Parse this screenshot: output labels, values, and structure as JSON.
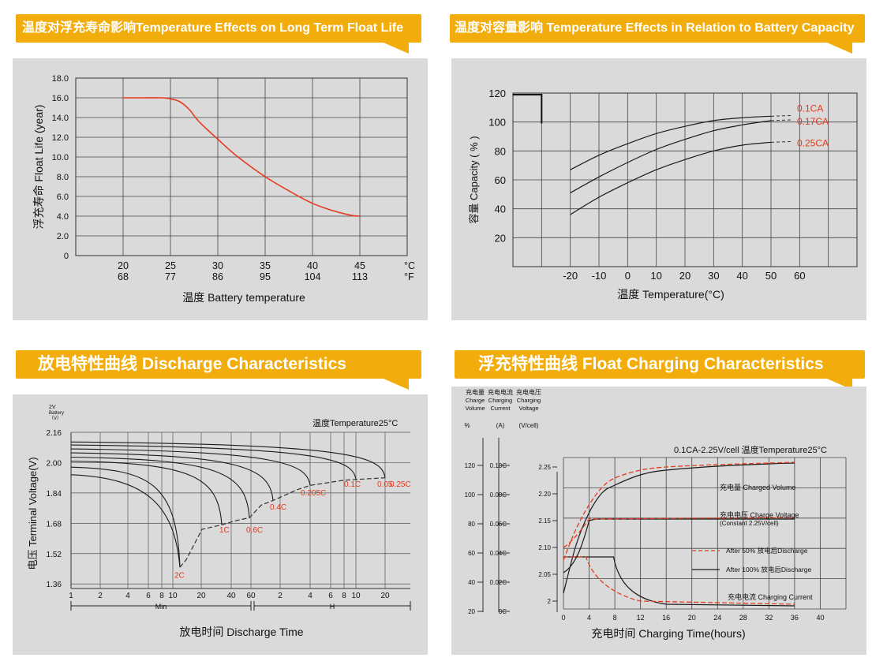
{
  "colors": {
    "banner": "#f2ad0c",
    "panel_bg": "#dadada",
    "accent_red": "#e53a1e",
    "line": "#222222"
  },
  "chart_data": [
    {
      "type": "line",
      "title": "温度对浮充寿命影响Temperature Effects on Long Term Float Life",
      "xlabel": "温度  Battery temperature",
      "ylabel": "浮充寿命  Float Life (year)",
      "x_ticks_c": [
        "20",
        "25",
        "30",
        "35",
        "40",
        "45"
      ],
      "x_ticks_f": [
        "68",
        "77",
        "86",
        "95",
        "104",
        "113"
      ],
      "x_unit_c": "°C",
      "x_unit_f": "°F",
      "y_ticks": [
        "0",
        "2.0",
        "4.0",
        "6.0",
        "8.0",
        "10.0",
        "12.0",
        "14.0",
        "16.0",
        "18.0"
      ],
      "xlim": [
        15,
        50
      ],
      "ylim": [
        0,
        18
      ],
      "grid": true,
      "series": [
        {
          "color": "#e53a1e",
          "x": [
            20,
            22,
            24,
            25,
            26,
            27,
            28,
            30,
            32,
            35,
            38,
            40,
            42,
            44,
            45
          ],
          "y": [
            16.0,
            16.0,
            16.0,
            15.9,
            15.6,
            14.8,
            13.6,
            11.8,
            10.1,
            8.0,
            6.3,
            5.3,
            4.6,
            4.1,
            4.0
          ]
        }
      ]
    },
    {
      "type": "line",
      "title": "温度对容量影响 Temperature Effects in Relation to Battery Capacity",
      "xlabel": "温度  Temperature(°C)",
      "ylabel": "容量 Capacity ( % )",
      "x_ticks": [
        "-20",
        "-10",
        "0",
        "10",
        "20",
        "30",
        "40",
        "50",
        "60"
      ],
      "y_ticks": [
        "20",
        "40",
        "60",
        "80",
        "100",
        "120"
      ],
      "grid": true,
      "series": [
        {
          "name": "0.1CA",
          "x": [
            -20,
            -10,
            0,
            10,
            20,
            30,
            40,
            50
          ],
          "y": [
            67,
            77,
            85,
            92,
            97,
            101,
            103,
            104
          ]
        },
        {
          "name": "0.17CA",
          "x": [
            -20,
            -10,
            0,
            10,
            20,
            30,
            40,
            50
          ],
          "y": [
            51,
            62,
            72,
            81,
            88,
            94,
            98,
            101
          ]
        },
        {
          "name": "0.25CA",
          "x": [
            -20,
            -10,
            0,
            10,
            20,
            30,
            40,
            50
          ],
          "y": [
            36,
            48,
            58,
            67,
            74,
            80,
            84,
            86
          ]
        }
      ]
    },
    {
      "type": "line",
      "title": "放电特性曲线 Discharge Characteristics",
      "xlabel": "放电时间 Discharge Time",
      "ylabel": "电压 Terminal Voltage(V)",
      "y_top_note": [
        "2V",
        "Battery",
        "（V）"
      ],
      "note": "温度Temperature25°C",
      "x_ticks": [
        "1",
        "2",
        "4",
        "6",
        "8",
        "10",
        "20",
        "40",
        "60",
        "2",
        "4",
        "6",
        "8",
        "10",
        "20"
      ],
      "x_groups": [
        "Min",
        "H"
      ],
      "y_ticks": [
        "2.16",
        "2.00",
        "1.84",
        "1.68",
        "1.52",
        "1.36"
      ],
      "series_labels": [
        "2C",
        "1C",
        "0.6C",
        "0.4C",
        "0.205C",
        "0.1C",
        "0.05",
        "0.25C"
      ]
    },
    {
      "type": "line",
      "title": "浮充特性曲线 Float Charging Characteristics",
      "xlabel": "充电时间 Charging Time(hours)",
      "axis_headers": [
        {
          "lines": [
            "充电量",
            "Charge",
            "Volume"
          ],
          "unit": "%"
        },
        {
          "lines": [
            "充电电流",
            "Charging",
            "Current"
          ],
          "unit": "(A)"
        },
        {
          "lines": [
            "充电电压",
            "Charging",
            "Voltage"
          ],
          "unit": "(V/cell)"
        }
      ],
      "volume_ticks": [
        "120",
        "100",
        "80",
        "60",
        "40",
        "20"
      ],
      "current_ticks": [
        "0.10C",
        "0.08C",
        "0.06C",
        "0.04C",
        "0.02C",
        "0C"
      ],
      "voltage_ticks": [
        "2.25",
        "2.20",
        "2.15",
        "2.10",
        "2.05",
        "2"
      ],
      "x_ticks": [
        "0",
        "4",
        "8",
        "12",
        "16",
        "20",
        "24",
        "28",
        "32",
        "36",
        "40"
      ],
      "condition": "0.1CA-2.25V/cell   温度Temperature25°C",
      "annotations": {
        "charged_volume": "充电量 Charged Volume",
        "charge_voltage_1": "充电电压 Charge Voltage",
        "charge_voltage_2": "(Constant 2.25V/cell)",
        "after50": "After 50% 放电后Discharge",
        "after100": "After 100% 放电后Discharge",
        "charging_current": "充电电流 Charging Current"
      }
    }
  ]
}
